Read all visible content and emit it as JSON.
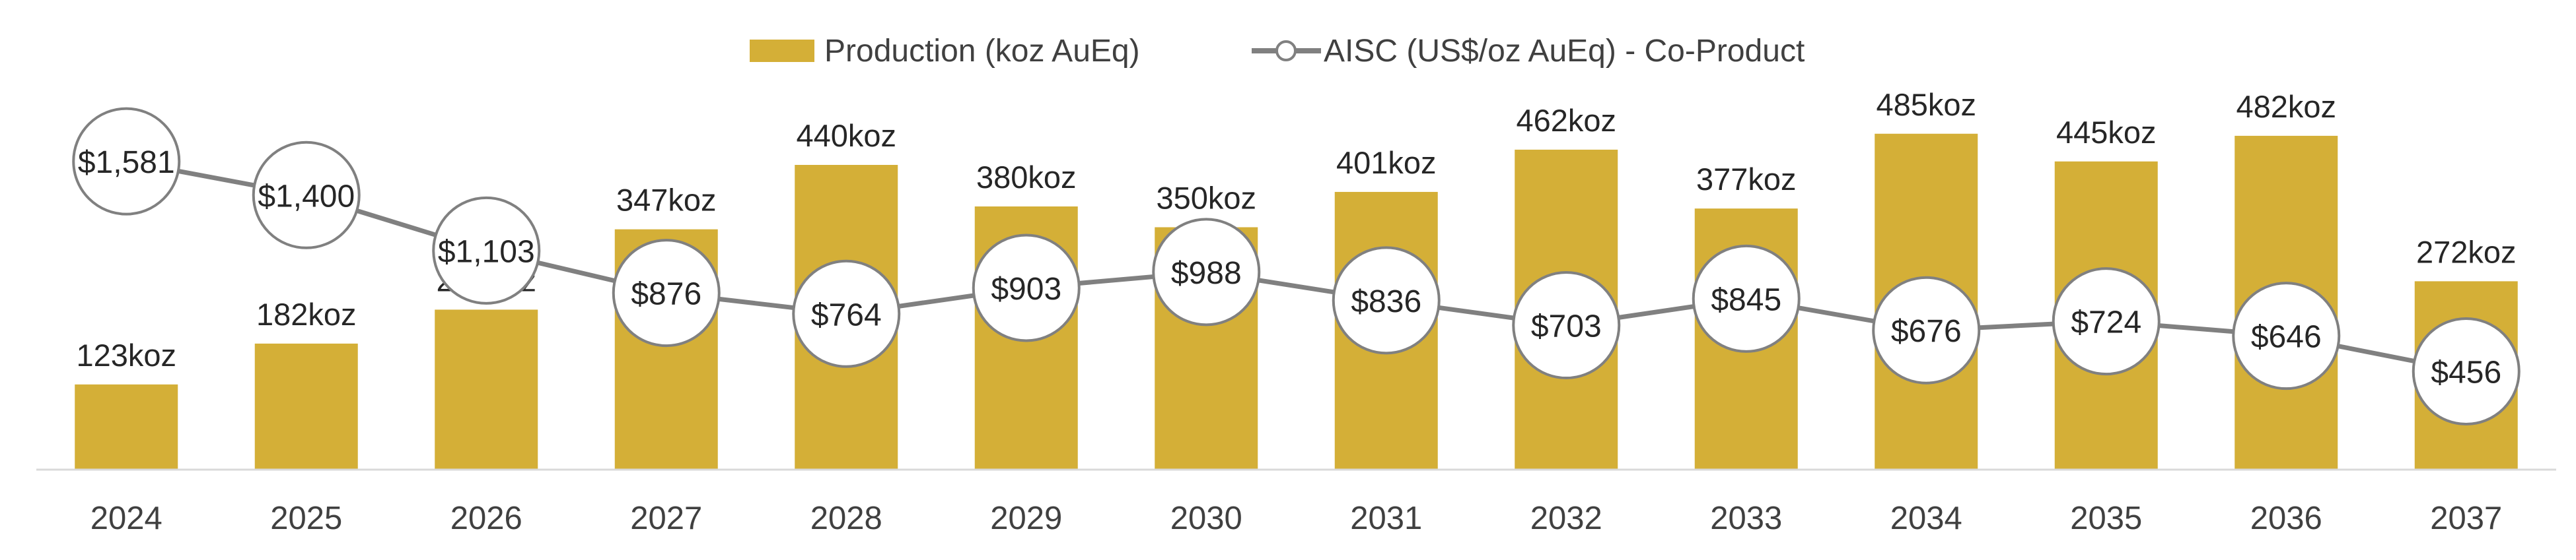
{
  "chart_data": {
    "type": "bar",
    "categories": [
      "2024",
      "2025",
      "2026",
      "2027",
      "2028",
      "2029",
      "2030",
      "2031",
      "2032",
      "2033",
      "2034",
      "2035",
      "2036",
      "2037"
    ],
    "series": [
      {
        "name": "Production (koz AuEq)",
        "chart_type": "bar",
        "color": "#D4AF37",
        "values": [
          123,
          182,
          231,
          347,
          440,
          380,
          350,
          401,
          462,
          377,
          485,
          445,
          482,
          272
        ],
        "labels": [
          "123koz",
          "182koz",
          "231koz",
          "347koz",
          "440koz",
          "380koz",
          "350koz",
          "401koz",
          "462koz",
          "377koz",
          "485koz",
          "445koz",
          "482koz",
          "272koz"
        ]
      },
      {
        "name": "AISC (US$/oz AuEq) - Co-Product",
        "chart_type": "line",
        "color": "#808080",
        "values": [
          1581,
          1400,
          1103,
          876,
          764,
          903,
          988,
          836,
          703,
          845,
          676,
          724,
          646,
          456
        ],
        "labels": [
          "$1,581",
          "$1,400",
          "$1,103",
          "$876",
          "$764",
          "$903",
          "$988",
          "$836",
          "$703",
          "$845",
          "$676",
          "$724",
          "$646",
          "$456"
        ]
      }
    ],
    "title": "",
    "xlabel": "",
    "ylabel": "",
    "legend": "top-center",
    "grid": false
  }
}
